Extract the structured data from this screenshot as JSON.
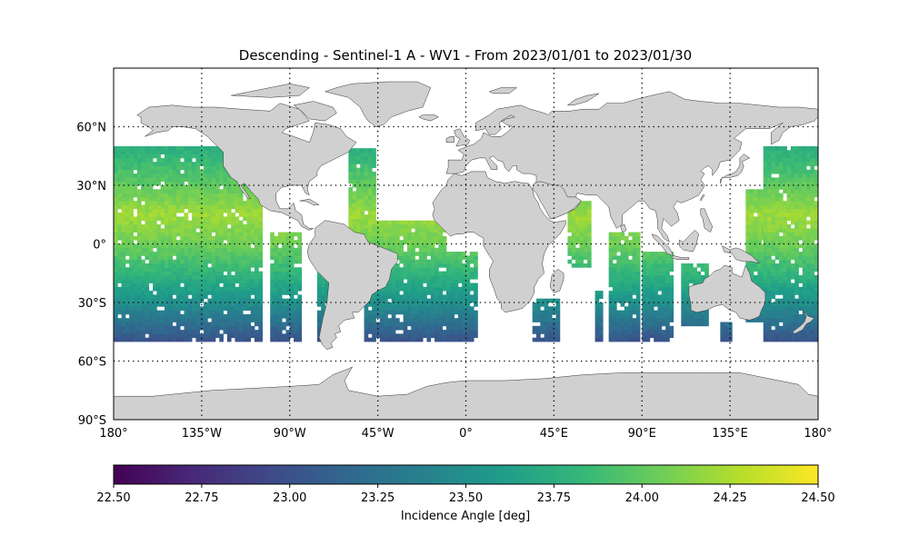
{
  "chart_data": {
    "type": "heatmap",
    "title": "Descending - Sentinel-1 A - WV1 - From 2023/01/01 to 2023/01/30",
    "projection": "plate-carree",
    "xlim": [
      -180,
      180
    ],
    "ylim": [
      -90,
      90
    ],
    "grid": "dotted, every 45° longitude and 30° latitude",
    "x_ticks": [
      -180,
      -135,
      -90,
      -45,
      0,
      45,
      90,
      135,
      180
    ],
    "x_tick_labels": [
      "180°",
      "135°W",
      "90°W",
      "45°W",
      "0°",
      "45°E",
      "90°E",
      "135°E",
      "180°"
    ],
    "y_ticks": [
      60,
      30,
      0,
      -30,
      -60,
      -90
    ],
    "y_tick_labels": [
      "60°N",
      "30°N",
      "0°",
      "30°S",
      "60°S",
      "90°S"
    ],
    "land_color": "#d0d0d0",
    "colorbar": {
      "label": "Incidence Angle [deg]",
      "colormap": "viridis",
      "range": [
        22.5,
        24.5
      ],
      "ticks": [
        22.5,
        22.75,
        23.0,
        23.25,
        23.5,
        23.75,
        24.0,
        24.25,
        24.5
      ],
      "tick_labels": [
        "22.50",
        "22.75",
        "23.00",
        "23.25",
        "23.50",
        "23.75",
        "24.00",
        "24.25",
        "24.50"
      ]
    },
    "coverage": {
      "lat_range": [
        -50,
        50
      ],
      "incidence_by_latitude": [
        [
          50,
          23.75
        ],
        [
          30,
          24.0
        ],
        [
          15,
          24.2
        ],
        [
          0,
          24.05
        ],
        [
          -15,
          23.8
        ],
        [
          -30,
          23.5
        ],
        [
          -40,
          23.25
        ],
        [
          -50,
          23.0
        ]
      ],
      "swaths": [
        {
          "lon": [
            -180,
            -104
          ],
          "lat": [
            -50,
            50
          ]
        },
        {
          "lon": [
            -100,
            -84
          ],
          "lat": [
            -50,
            5
          ]
        },
        {
          "lon": [
            -76,
            -70
          ],
          "lat": [
            -50,
            -15
          ]
        },
        {
          "lon": [
            -60,
            -47
          ],
          "lat": [
            3,
            48
          ]
        },
        {
          "lon": [
            -52,
            -10
          ],
          "lat": [
            -50,
            12
          ]
        },
        {
          "lon": [
            -10,
            6
          ],
          "lat": [
            -50,
            -5
          ]
        },
        {
          "lon": [
            34,
            48
          ],
          "lat": [
            -50,
            -28
          ]
        },
        {
          "lon": [
            52,
            63
          ],
          "lat": [
            -12,
            22
          ]
        },
        {
          "lon": [
            66,
            70
          ],
          "lat": [
            -50,
            -25
          ]
        },
        {
          "lon": [
            73,
            88
          ],
          "lat": [
            -50,
            5
          ]
        },
        {
          "lon": [
            90,
            106
          ],
          "lat": [
            -50,
            -5
          ]
        },
        {
          "lon": [
            110,
            124
          ],
          "lat": [
            -42,
            -10
          ]
        },
        {
          "lon": [
            130,
            136
          ],
          "lat": [
            -50,
            -40
          ]
        },
        {
          "lon": [
            143,
            152
          ],
          "lat": [
            -40,
            28
          ]
        },
        {
          "lon": [
            152,
            180
          ],
          "lat": [
            -50,
            50
          ]
        }
      ]
    }
  }
}
